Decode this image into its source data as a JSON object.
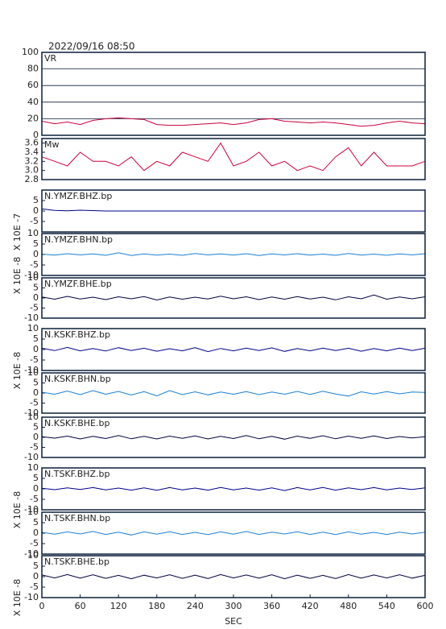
{
  "chart_data": [
    {
      "type": "line",
      "title": "2022/09/16  08:50",
      "annotation": "VR",
      "x": [
        0,
        20,
        40,
        60,
        80,
        100,
        120,
        140,
        160,
        180,
        200,
        220,
        240,
        260,
        280,
        300,
        320,
        340,
        360,
        380,
        400,
        420,
        440,
        460,
        480,
        500,
        520,
        540,
        560,
        580,
        600
      ],
      "series": [
        {
          "color": "#c8003c",
          "values": [
            17,
            14,
            16,
            13,
            18,
            20,
            21,
            20,
            19,
            13,
            12,
            12,
            13,
            14,
            15,
            13,
            15,
            19,
            20,
            17,
            16,
            15,
            16,
            15,
            13,
            11,
            12,
            15,
            17,
            15,
            14
          ]
        }
      ],
      "ylim": [
        0,
        100
      ],
      "yticks": [
        0,
        20,
        40,
        60,
        80,
        100
      ],
      "grid": true
    },
    {
      "type": "line",
      "annotation": "Mw",
      "x": [
        0,
        20,
        40,
        60,
        80,
        100,
        120,
        140,
        160,
        180,
        200,
        220,
        240,
        260,
        280,
        300,
        320,
        340,
        360,
        380,
        400,
        420,
        440,
        460,
        480,
        500,
        520,
        540,
        560,
        580,
        600
      ],
      "series": [
        {
          "color": "#d0003c",
          "values": [
            3.3,
            3.2,
            3.1,
            3.4,
            3.2,
            3.2,
            3.1,
            3.3,
            3.0,
            3.2,
            3.1,
            3.4,
            3.3,
            3.2,
            3.6,
            3.1,
            3.2,
            3.4,
            3.1,
            3.2,
            3.0,
            3.1,
            3.0,
            3.3,
            3.5,
            3.1,
            3.4,
            3.1,
            3.1,
            3.1,
            3.2
          ]
        }
      ],
      "ylim": [
        2.8,
        3.7
      ],
      "yticks": [
        {
          "value": 2.8,
          "label": "2.8"
        },
        {
          "value": 3.0,
          "label": "3.0"
        },
        {
          "value": 3.2,
          "label": "3.2"
        },
        {
          "value": 3.4,
          "label": "3.4"
        },
        {
          "value": 3.6,
          "label": "3.6"
        }
      ],
      "grid": false
    },
    {
      "type": "line",
      "annotation": "N.YMZF.BHZ.bp",
      "ylabel": "X 10E -7",
      "x": [
        0,
        20,
        40,
        60,
        80,
        100,
        120,
        140,
        160,
        180,
        200,
        220,
        240,
        260,
        280,
        300,
        320,
        340,
        360,
        380,
        400,
        420,
        440,
        460,
        480,
        500,
        520,
        540,
        560,
        580,
        600
      ],
      "series": [
        {
          "color": "#00008b",
          "values": [
            1,
            0.3,
            0.1,
            0.4,
            0.2,
            0,
            0,
            0,
            0,
            0,
            0,
            0,
            0,
            0,
            0,
            0,
            0,
            0,
            0,
            0,
            0,
            0,
            0,
            0,
            0,
            0,
            0,
            0,
            0,
            0,
            0
          ]
        }
      ],
      "ylim": [
        -10,
        10
      ],
      "yticks": [
        -5,
        0,
        5
      ],
      "grid": false
    },
    {
      "type": "line",
      "annotation": "N.YMZF.BHN.bp",
      "ylabel": "X 10E -8",
      "x": [
        0,
        20,
        40,
        60,
        80,
        100,
        120,
        140,
        160,
        180,
        200,
        220,
        240,
        260,
        280,
        300,
        320,
        340,
        360,
        380,
        400,
        420,
        440,
        460,
        480,
        500,
        520,
        540,
        560,
        580,
        600
      ],
      "series": [
        {
          "color": "#1c7fd6",
          "values": [
            0.2,
            -0.3,
            0.4,
            -0.2,
            0.3,
            -0.4,
            0.8,
            -0.5,
            0.3,
            -0.3,
            0.2,
            -0.4,
            0.5,
            -0.2,
            0.3,
            -0.3,
            0.4,
            -0.5,
            0.3,
            -0.2,
            0.4,
            -0.3,
            0.2,
            -0.4,
            0.5,
            -0.3,
            0.2,
            -0.4,
            0.3,
            -0.2,
            0.4
          ]
        }
      ],
      "ylim": [
        -10,
        10
      ],
      "yticks": [
        -10,
        -5,
        0,
        5,
        10
      ],
      "grid": false
    },
    {
      "type": "line",
      "annotation": "N.YMZF.BHE.bp",
      "x": [
        0,
        20,
        40,
        60,
        80,
        100,
        120,
        140,
        160,
        180,
        200,
        220,
        240,
        260,
        280,
        300,
        320,
        340,
        360,
        380,
        400,
        420,
        440,
        460,
        480,
        500,
        520,
        540,
        560,
        580,
        600
      ],
      "series": [
        {
          "color": "#000040",
          "values": [
            0.5,
            -0.6,
            0.8,
            -0.5,
            0.4,
            -0.8,
            0.6,
            -0.4,
            0.7,
            -1,
            0.5,
            -0.6,
            0.4,
            -0.5,
            0.9,
            -0.4,
            0.6,
            -0.8,
            0.5,
            -0.6,
            0.7,
            -0.5,
            0.4,
            -0.9,
            0.6,
            -0.4,
            1.5,
            -0.6,
            0.5,
            -0.4,
            0.6
          ]
        }
      ],
      "ylim": [
        -10,
        10
      ],
      "yticks": [
        -10,
        -5,
        0,
        5,
        10
      ],
      "grid": false
    },
    {
      "type": "line",
      "annotation": "N.KSKF.BHZ.bp",
      "ylabel": "X 10E -8",
      "x": [
        0,
        20,
        40,
        60,
        80,
        100,
        120,
        140,
        160,
        180,
        200,
        220,
        240,
        260,
        280,
        300,
        320,
        340,
        360,
        380,
        400,
        420,
        440,
        460,
        480,
        500,
        520,
        540,
        560,
        580,
        600
      ],
      "series": [
        {
          "color": "#00008b",
          "values": [
            0.6,
            -0.5,
            1,
            -0.6,
            0.5,
            -0.7,
            0.9,
            -0.5,
            0.6,
            -0.8,
            0.4,
            -0.6,
            0.9,
            -1,
            0.5,
            -0.6,
            0.7,
            -0.5,
            0.8,
            -0.9,
            0.5,
            -0.6,
            0.7,
            -0.5,
            0.6,
            -0.8,
            0.5,
            -0.6,
            0.7,
            -0.5,
            0.6
          ]
        }
      ],
      "ylim": [
        -10,
        10
      ],
      "yticks": [
        -10,
        -5,
        0,
        5,
        10
      ],
      "grid": false
    },
    {
      "type": "line",
      "annotation": "N.KSKF.BHN.bp",
      "x": [
        0,
        20,
        40,
        60,
        80,
        100,
        120,
        140,
        160,
        180,
        200,
        220,
        240,
        260,
        280,
        300,
        320,
        340,
        360,
        380,
        400,
        420,
        440,
        460,
        480,
        500,
        520,
        540,
        560,
        580,
        600
      ],
      "series": [
        {
          "color": "#1c7fd6",
          "values": [
            0.4,
            -0.6,
            1,
            -0.8,
            1.2,
            -0.6,
            0.8,
            -1,
            0.7,
            -1.4,
            1.2,
            -0.8,
            0.6,
            -0.9,
            0.5,
            -0.6,
            0.7,
            -0.8,
            0.5,
            -0.6,
            0.8,
            -0.7,
            0.9,
            -0.5,
            -1.5,
            0.6,
            -0.5,
            0.7,
            -0.4,
            0.5,
            0.3
          ]
        }
      ],
      "ylim": [
        -10,
        10
      ],
      "yticks": [
        -10,
        -5,
        0,
        5,
        10
      ],
      "grid": false
    },
    {
      "type": "line",
      "annotation": "N.KSKF.BHE.bp",
      "x": [
        0,
        20,
        40,
        60,
        80,
        100,
        120,
        140,
        160,
        180,
        200,
        220,
        240,
        260,
        280,
        300,
        320,
        340,
        360,
        380,
        400,
        420,
        440,
        460,
        480,
        500,
        520,
        540,
        560,
        580,
        600
      ],
      "series": [
        {
          "color": "#000040",
          "values": [
            0.3,
            -0.4,
            0.6,
            -0.8,
            0.5,
            -0.6,
            0.9,
            -0.7,
            0.5,
            -0.8,
            0.6,
            -0.5,
            0.7,
            -0.8,
            0.5,
            -0.6,
            0.9,
            -0.7,
            0.5,
            -0.9,
            0.6,
            -0.5,
            0.8,
            -0.7,
            0.6,
            -0.5,
            0.7,
            -0.6,
            0.4,
            -0.3,
            0.3
          ]
        }
      ],
      "ylim": [
        -10,
        10
      ],
      "yticks": [
        -10,
        -5,
        0,
        5,
        10
      ],
      "grid": false
    },
    {
      "type": "line",
      "annotation": "N.TSKF.BHZ.bp",
      "ylabel": "X 10E -8",
      "x": [
        0,
        20,
        40,
        60,
        80,
        100,
        120,
        140,
        160,
        180,
        200,
        220,
        240,
        260,
        280,
        300,
        320,
        340,
        360,
        380,
        400,
        420,
        440,
        460,
        480,
        500,
        520,
        540,
        560,
        580,
        600
      ],
      "series": [
        {
          "color": "#00008b",
          "values": [
            0.3,
            -0.4,
            0.5,
            -0.3,
            0.6,
            -0.5,
            0.4,
            -0.6,
            0.5,
            -0.7,
            0.6,
            -0.5,
            0.4,
            -0.6,
            0.7,
            -0.5,
            0.4,
            -0.6,
            0.5,
            -0.8,
            0.6,
            -0.5,
            0.7,
            -0.6,
            0.5,
            -0.4,
            0.6,
            -0.5,
            0.4,
            -0.3,
            0.5
          ]
        }
      ],
      "ylim": [
        -10,
        10
      ],
      "yticks": [
        -10,
        -5,
        0,
        5,
        10
      ],
      "grid": false
    },
    {
      "type": "line",
      "annotation": "N.TSKF.BHN.bp",
      "x": [
        0,
        20,
        40,
        60,
        80,
        100,
        120,
        140,
        160,
        180,
        200,
        220,
        240,
        260,
        280,
        300,
        320,
        340,
        360,
        380,
        400,
        420,
        440,
        460,
        480,
        500,
        520,
        540,
        560,
        580,
        600
      ],
      "series": [
        {
          "color": "#1c7fd6",
          "values": [
            0.4,
            -0.5,
            0.6,
            -0.4,
            0.8,
            -0.6,
            0.5,
            -0.9,
            0.6,
            -0.5,
            0.7,
            -0.6,
            0.4,
            -0.7,
            0.6,
            -0.5,
            0.8,
            -0.6,
            0.5,
            -0.4,
            0.7,
            -0.6,
            0.5,
            -0.7,
            0.6,
            -0.5,
            0.4,
            -0.6,
            0.5,
            -0.4,
            0.5
          ]
        }
      ],
      "ylim": [
        -10,
        10
      ],
      "yticks": [
        -10,
        -5,
        0,
        5,
        10
      ],
      "grid": false
    },
    {
      "type": "line",
      "annotation": "N.TSKF.BHE.bp",
      "ylabel": "X 10E -8",
      "xlabel": "SEC",
      "x": [
        0,
        20,
        40,
        60,
        80,
        100,
        120,
        140,
        160,
        180,
        200,
        220,
        240,
        260,
        280,
        300,
        320,
        340,
        360,
        380,
        400,
        420,
        440,
        460,
        480,
        500,
        520,
        540,
        560,
        580,
        600
      ],
      "series": [
        {
          "color": "#000040",
          "values": [
            0.8,
            -0.6,
            1,
            -0.7,
            0.9,
            -0.8,
            0.6,
            -1,
            0.7,
            -0.6,
            0.9,
            -0.8,
            0.7,
            -0.9,
            1,
            -0.6,
            0.8,
            -0.7,
            0.9,
            -1,
            0.7,
            -0.8,
            0.6,
            -0.9,
            1,
            -0.7,
            0.8,
            -0.6,
            0.9,
            -0.7,
            0.6
          ]
        }
      ],
      "ylim": [
        -10,
        10
      ],
      "yticks": [
        -10,
        -5,
        0,
        5,
        10
      ],
      "grid": false,
      "xlim": [
        0,
        600
      ],
      "xticks": [
        0,
        60,
        120,
        180,
        240,
        300,
        360,
        420,
        480,
        540,
        600
      ]
    }
  ]
}
